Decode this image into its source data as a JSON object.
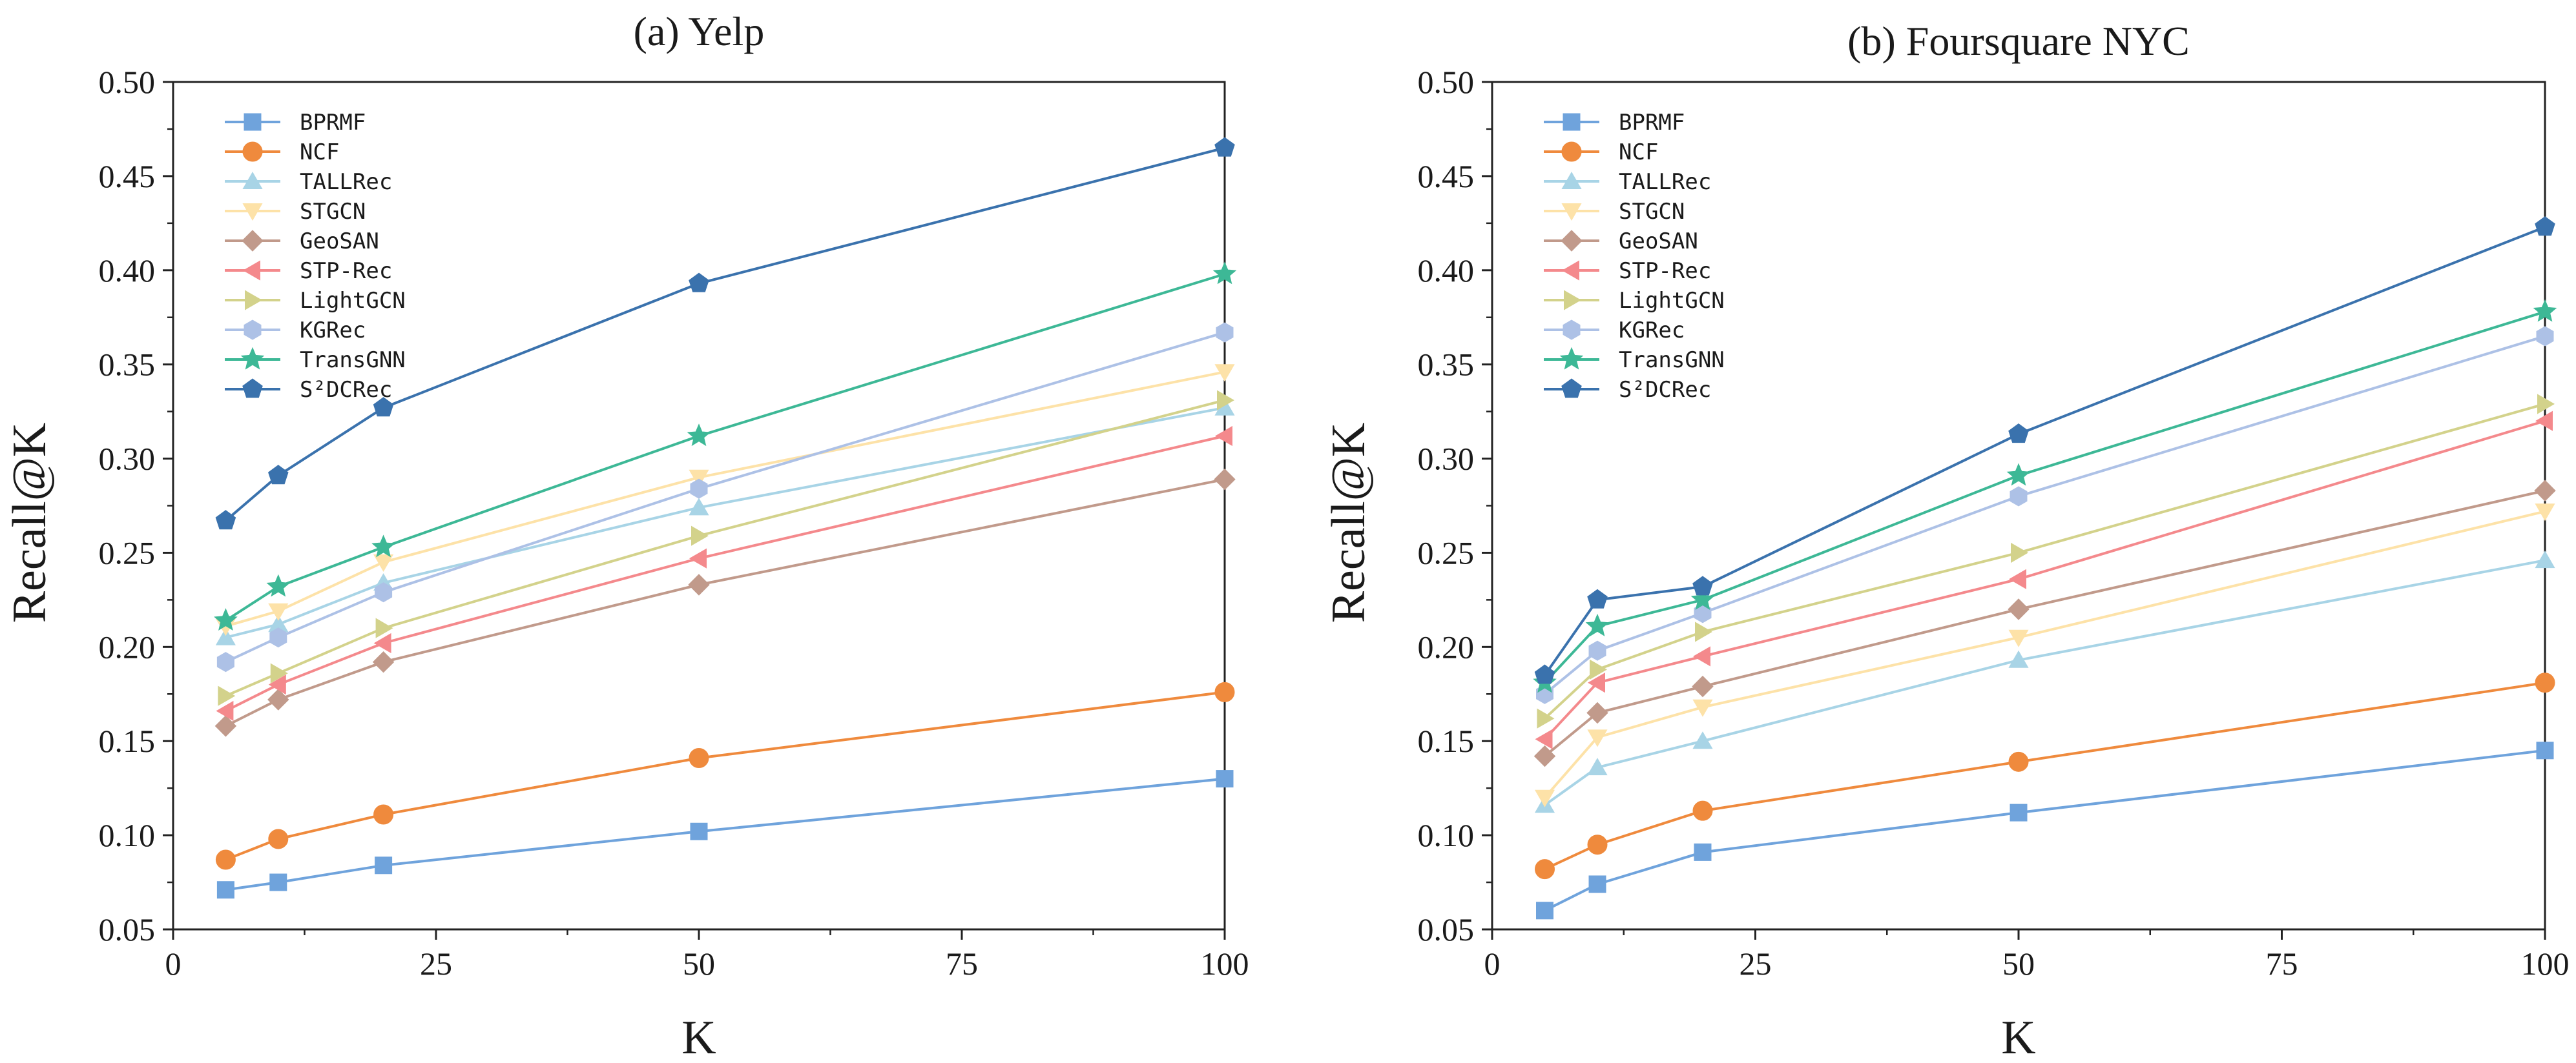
{
  "chart_data": [
    {
      "type": "line",
      "title": "(a) Yelp",
      "xlabel": "K",
      "ylabel": "Recall@K",
      "xlim": [
        0,
        100
      ],
      "ylim": [
        0.05,
        0.5
      ],
      "xticks": [
        "0",
        "25",
        "50",
        "75",
        "100"
      ],
      "yticks": [
        "0.05",
        "0.10",
        "0.15",
        "0.20",
        "0.25",
        "0.30",
        "0.35",
        "0.40",
        "0.45",
        "0.50"
      ],
      "grid": false,
      "legend_position": "top-left",
      "x": [
        5,
        10,
        20,
        50,
        100
      ],
      "series": [
        {
          "name": "BPRMF",
          "values": [
            0.071,
            0.075,
            0.084,
            0.102,
            0.13
          ],
          "color": "#6fa3dc",
          "marker": "square"
        },
        {
          "name": "NCF",
          "values": [
            0.087,
            0.098,
            0.111,
            0.141,
            0.176
          ],
          "color": "#ef8a3d",
          "marker": "circle"
        },
        {
          "name": "TALLRec",
          "values": [
            0.205,
            0.212,
            0.234,
            0.274,
            0.327
          ],
          "color": "#a8d4e6",
          "marker": "triangle-up"
        },
        {
          "name": "STGCN",
          "values": [
            0.211,
            0.219,
            0.245,
            0.29,
            0.346
          ],
          "color": "#fde2a8",
          "marker": "triangle-down"
        },
        {
          "name": "GeoSAN",
          "values": [
            0.158,
            0.172,
            0.192,
            0.233,
            0.289
          ],
          "color": "#c19a8b",
          "marker": "diamond"
        },
        {
          "name": "STP-Rec",
          "values": [
            0.166,
            0.18,
            0.202,
            0.247,
            0.312
          ],
          "color": "#f4898c",
          "marker": "triangle-left"
        },
        {
          "name": "LightGCN",
          "values": [
            0.174,
            0.186,
            0.21,
            0.259,
            0.331
          ],
          "color": "#d3d28b",
          "marker": "triangle-right"
        },
        {
          "name": "KGRec",
          "values": [
            0.192,
            0.205,
            0.229,
            0.284,
            0.367
          ],
          "color": "#adc1e6",
          "marker": "hexagon"
        },
        {
          "name": "TransGNN",
          "values": [
            0.214,
            0.232,
            0.253,
            0.312,
            0.398
          ],
          "color": "#3db896",
          "marker": "star"
        },
        {
          "name": "S²DCRec",
          "values": [
            0.267,
            0.291,
            0.327,
            0.393,
            0.465
          ],
          "color": "#3a72ad",
          "marker": "pentagon"
        }
      ]
    },
    {
      "type": "line",
      "title": "(b) Foursquare NYC",
      "xlabel": "K",
      "ylabel": "Recall@K",
      "xlim": [
        0,
        100
      ],
      "ylim": [
        0.05,
        0.5
      ],
      "xticks": [
        "0",
        "25",
        "50",
        "75",
        "100"
      ],
      "yticks": [
        "0.05",
        "0.10",
        "0.15",
        "0.20",
        "0.25",
        "0.30",
        "0.35",
        "0.40",
        "0.45",
        "0.50"
      ],
      "grid": false,
      "legend_position": "top-left",
      "x": [
        5,
        10,
        20,
        50,
        100
      ],
      "series": [
        {
          "name": "BPRMF",
          "values": [
            0.06,
            0.074,
            0.091,
            0.112,
            0.145
          ],
          "color": "#6fa3dc",
          "marker": "square"
        },
        {
          "name": "NCF",
          "values": [
            0.082,
            0.095,
            0.113,
            0.139,
            0.181
          ],
          "color": "#ef8a3d",
          "marker": "circle"
        },
        {
          "name": "TALLRec",
          "values": [
            0.116,
            0.136,
            0.15,
            0.193,
            0.246
          ],
          "color": "#a8d4e6",
          "marker": "triangle-up"
        },
        {
          "name": "STGCN",
          "values": [
            0.12,
            0.152,
            0.168,
            0.205,
            0.272
          ],
          "color": "#fde2a8",
          "marker": "triangle-down"
        },
        {
          "name": "GeoSAN",
          "values": [
            0.142,
            0.165,
            0.179,
            0.22,
            0.283
          ],
          "color": "#c19a8b",
          "marker": "diamond"
        },
        {
          "name": "STP-Rec",
          "values": [
            0.151,
            0.181,
            0.195,
            0.236,
            0.32
          ],
          "color": "#f4898c",
          "marker": "triangle-left"
        },
        {
          "name": "LightGCN",
          "values": [
            0.162,
            0.188,
            0.208,
            0.25,
            0.329
          ],
          "color": "#d3d28b",
          "marker": "triangle-right"
        },
        {
          "name": "KGRec",
          "values": [
            0.175,
            0.198,
            0.218,
            0.28,
            0.365
          ],
          "color": "#adc1e6",
          "marker": "hexagon"
        },
        {
          "name": "TransGNN",
          "values": [
            0.181,
            0.211,
            0.225,
            0.291,
            0.378
          ],
          "color": "#3db896",
          "marker": "star"
        },
        {
          "name": "S²DCRec",
          "values": [
            0.185,
            0.225,
            0.232,
            0.313,
            0.423
          ],
          "color": "#3a72ad",
          "marker": "pentagon"
        }
      ]
    }
  ]
}
